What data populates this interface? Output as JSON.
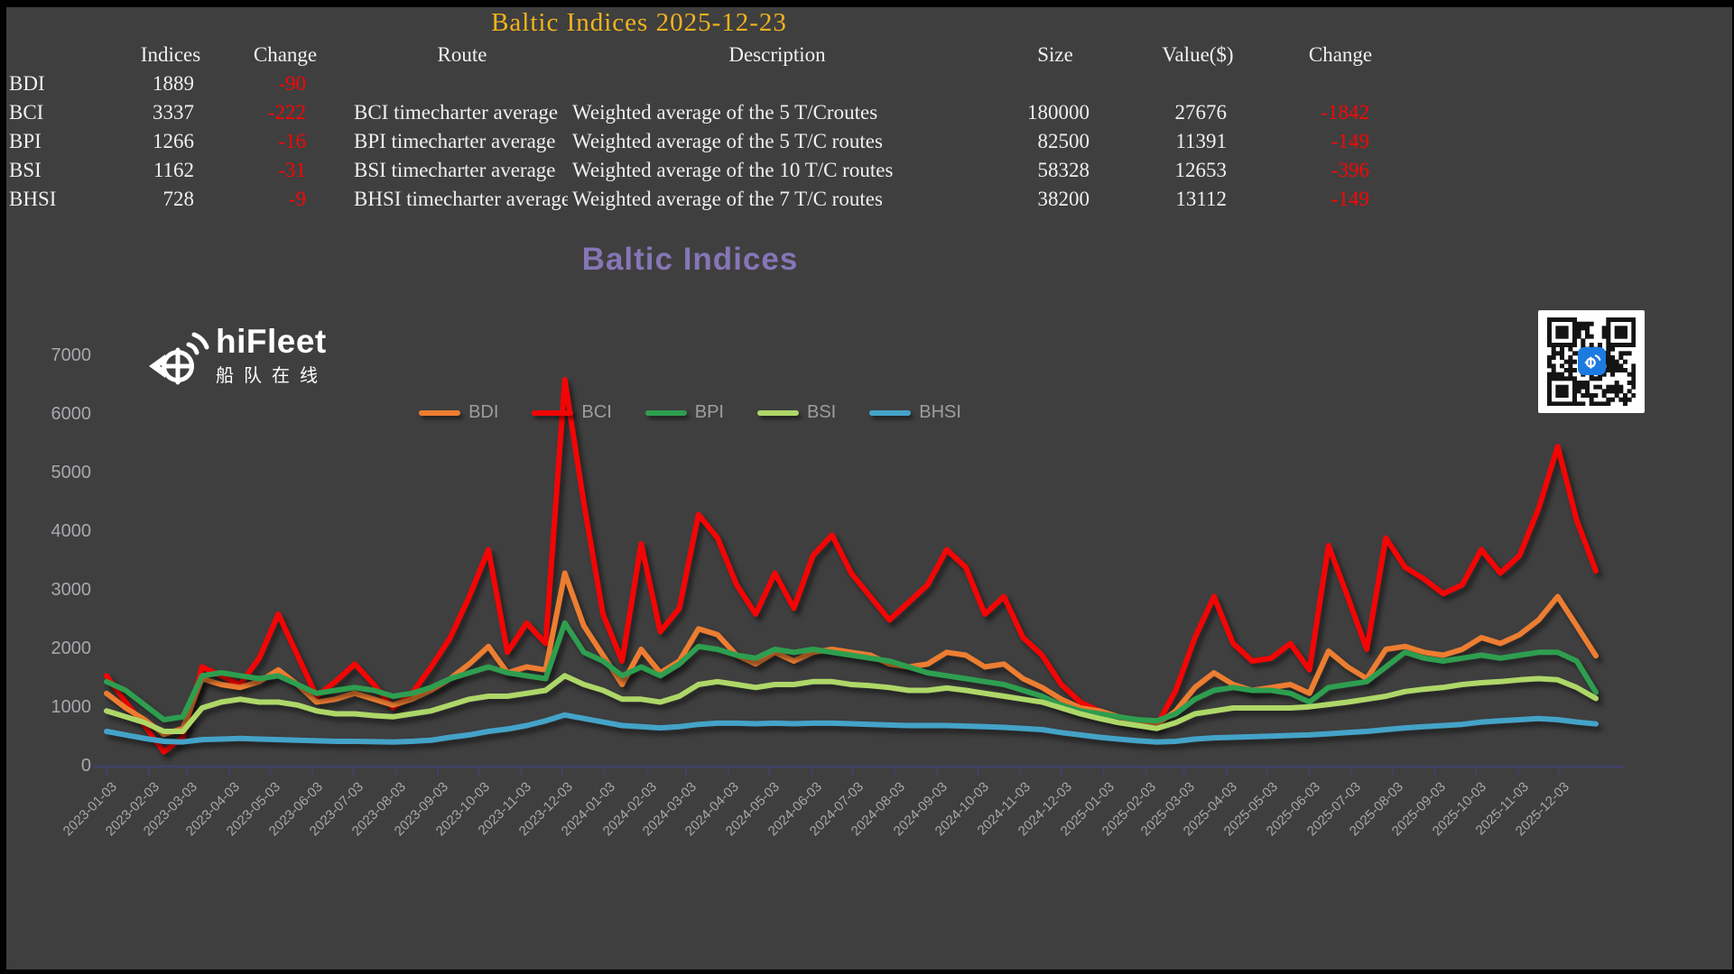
{
  "window": {
    "background": "#3f3f3f",
    "frame_color": "#000000"
  },
  "header": {
    "title": "Baltic Indices 2025-12-23",
    "title_color": "#f0b41c"
  },
  "table": {
    "text_color": "#f0f0f0",
    "negative_color": "#fb0505",
    "headers": [
      "Indices",
      "Change",
      "Route",
      "Description",
      "Size",
      "Value($)",
      "Change"
    ],
    "rows": [
      {
        "name": "BDI",
        "index": "1889",
        "change": "-90",
        "route": "",
        "description": "",
        "size": "",
        "value": "",
        "value_change": ""
      },
      {
        "name": "BCI",
        "index": "3337",
        "change": "-222",
        "route": "BCI timecharter average",
        "description": "Weighted average of the 5 T/Croutes",
        "size": "180000",
        "value": "27676",
        "value_change": "-1842"
      },
      {
        "name": "BPI",
        "index": "1266",
        "change": "-16",
        "route": "BPI timecharter average",
        "description": "Weighted average of the 5 T/C routes",
        "size": "82500",
        "value": "11391",
        "value_change": "-149"
      },
      {
        "name": "BSI",
        "index": "1162",
        "change": "-31",
        "route": "BSI timecharter average",
        "description": "Weighted average of the 10 T/C routes",
        "size": "58328",
        "value": "12653",
        "value_change": "-396"
      },
      {
        "name": "BHSI",
        "index": "728",
        "change": "-9",
        "route": "BHSI timecharter average",
        "description": "Weighted average of the 7 T/C routes",
        "size": "38200",
        "value": "13112",
        "value_change": "-149"
      }
    ]
  },
  "logo": {
    "name": "hiFleet",
    "subtitle": "船队在线"
  },
  "qr": {
    "background": "#ffffff",
    "module_color": "#141414",
    "center_icon_color": "#1b7be0"
  },
  "chart_data": {
    "type": "line",
    "title": "Baltic Indices",
    "title_color": "#8576b6",
    "xlabel": "",
    "ylabel": "",
    "ylim": [
      0,
      7000
    ],
    "y_ticks": [
      0,
      1000,
      2000,
      3000,
      4000,
      5000,
      6000,
      7000
    ],
    "grid": false,
    "legend_position": "top-center",
    "axis_color": "#41416b",
    "tick_label_color": "#a6a9ad",
    "x_range": [
      "2023-01-03",
      "2025-12-23"
    ],
    "points_start_date": "2023-01-03",
    "points_interval_days": 14,
    "x_tick_labels": [
      "2023-01-03",
      "2023-02-03",
      "2023-03-03",
      "2023-04-03",
      "2023-05-03",
      "2023-06-03",
      "2023-07-03",
      "2023-08-03",
      "2023-09-03",
      "2023-10-03",
      "2023-11-03",
      "2023-12-03",
      "2024-01-03",
      "2024-02-03",
      "2024-03-03",
      "2024-04-03",
      "2024-05-03",
      "2024-06-03",
      "2024-07-03",
      "2024-08-03",
      "2024-09-03",
      "2024-10-03",
      "2024-11-03",
      "2024-12-03",
      "2025-01-03",
      "2025-02-03",
      "2025-03-03",
      "2025-04-03",
      "2025-05-03",
      "2025-06-03",
      "2025-07-03",
      "2025-08-03",
      "2025-09-03",
      "2025-10-03",
      "2025-11-03",
      "2025-12-03"
    ],
    "series": [
      {
        "name": "BDI",
        "color": "#ed7d31",
        "values": [
          1250,
          1000,
          800,
          550,
          650,
          1500,
          1400,
          1350,
          1450,
          1650,
          1400,
          1100,
          1150,
          1250,
          1150,
          1050,
          1150,
          1300,
          1500,
          1750,
          2050,
          1600,
          1700,
          1650,
          3300,
          2400,
          1900,
          1400,
          2000,
          1600,
          1800,
          2350,
          2250,
          1900,
          1750,
          1950,
          1800,
          1950,
          2000,
          1950,
          1900,
          1750,
          1700,
          1750,
          1950,
          1900,
          1700,
          1750,
          1500,
          1350,
          1150,
          1000,
          950,
          850,
          780,
          720,
          950,
          1350,
          1600,
          1400,
          1300,
          1350,
          1400,
          1250,
          1970,
          1700,
          1500,
          2000,
          2050,
          1950,
          1900,
          2000,
          2200,
          2100,
          2250,
          2500,
          2900,
          2400,
          1889
        ]
      },
      {
        "name": "BCI",
        "color": "#f40505",
        "values": [
          1550,
          1100,
          700,
          250,
          500,
          1700,
          1550,
          1400,
          1850,
          2600,
          1900,
          1200,
          1450,
          1750,
          1400,
          1000,
          1250,
          1700,
          2200,
          2900,
          3700,
          1950,
          2450,
          2100,
          6600,
          4500,
          2600,
          1800,
          3800,
          2300,
          2700,
          4300,
          3900,
          3100,
          2600,
          3300,
          2700,
          3600,
          3950,
          3300,
          2900,
          2500,
          2800,
          3100,
          3700,
          3400,
          2600,
          2900,
          2200,
          1900,
          1400,
          1100,
          950,
          800,
          750,
          700,
          1300,
          2200,
          2900,
          2100,
          1800,
          1850,
          2100,
          1650,
          3770,
          2900,
          2000,
          3900,
          3400,
          3200,
          2950,
          3100,
          3700,
          3300,
          3600,
          4400,
          5460,
          4200,
          3337
        ]
      },
      {
        "name": "BPI",
        "color": "#2e9e4f",
        "values": [
          1450,
          1300,
          1050,
          800,
          850,
          1550,
          1600,
          1550,
          1500,
          1550,
          1400,
          1250,
          1300,
          1350,
          1300,
          1200,
          1250,
          1350,
          1500,
          1600,
          1700,
          1600,
          1550,
          1500,
          2450,
          1950,
          1800,
          1550,
          1700,
          1550,
          1750,
          2050,
          2000,
          1900,
          1850,
          2000,
          1950,
          2000,
          1950,
          1900,
          1850,
          1800,
          1700,
          1600,
          1550,
          1500,
          1450,
          1400,
          1300,
          1200,
          1050,
          950,
          900,
          850,
          800,
          780,
          900,
          1150,
          1300,
          1350,
          1300,
          1300,
          1250,
          1100,
          1350,
          1400,
          1450,
          1700,
          1950,
          1850,
          1800,
          1850,
          1900,
          1850,
          1900,
          1950,
          1950,
          1800,
          1266
        ]
      },
      {
        "name": "BSI",
        "color": "#aed768",
        "values": [
          950,
          850,
          750,
          600,
          600,
          1000,
          1100,
          1150,
          1100,
          1100,
          1050,
          950,
          900,
          900,
          870,
          850,
          900,
          950,
          1050,
          1150,
          1200,
          1200,
          1250,
          1300,
          1550,
          1400,
          1300,
          1150,
          1150,
          1100,
          1200,
          1400,
          1450,
          1400,
          1350,
          1400,
          1400,
          1450,
          1450,
          1400,
          1380,
          1350,
          1300,
          1300,
          1340,
          1300,
          1250,
          1200,
          1150,
          1100,
          1000,
          900,
          820,
          750,
          700,
          650,
          750,
          900,
          950,
          1000,
          1000,
          1000,
          1000,
          1020,
          1060,
          1100,
          1150,
          1200,
          1280,
          1320,
          1350,
          1400,
          1430,
          1450,
          1480,
          1500,
          1480,
          1350,
          1162
        ]
      },
      {
        "name": "BHSI",
        "color": "#44a3c8",
        "values": [
          600,
          540,
          480,
          430,
          420,
          460,
          470,
          480,
          470,
          460,
          450,
          440,
          430,
          430,
          425,
          420,
          430,
          450,
          500,
          540,
          600,
          640,
          700,
          780,
          880,
          820,
          760,
          700,
          680,
          660,
          680,
          720,
          740,
          740,
          730,
          740,
          730,
          740,
          740,
          730,
          720,
          710,
          700,
          700,
          700,
          690,
          680,
          670,
          650,
          630,
          580,
          540,
          500,
          470,
          440,
          420,
          430,
          470,
          490,
          500,
          510,
          520,
          530,
          540,
          560,
          580,
          600,
          630,
          660,
          680,
          700,
          720,
          760,
          780,
          800,
          820,
          800,
          760,
          728
        ]
      }
    ]
  }
}
